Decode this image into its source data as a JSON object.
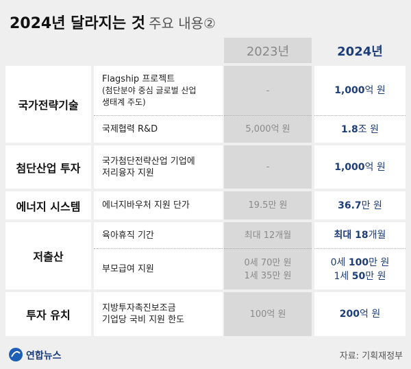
{
  "title": {
    "main": "2024년 달라지는 것",
    "sub": "주요 내용②"
  },
  "table": {
    "headers": [
      "2023년",
      "2024년"
    ],
    "groups": [
      {
        "category": "국가전략기술",
        "rows": [
          {
            "item": [
              "Flagship 프로젝트",
              "(첨단분야 중심 글로벌 산업",
              "생태계 주도)"
            ],
            "y2023": [
              "-"
            ],
            "y2024": [
              [
                {
                  "text": "1,000",
                  "bold": true
                },
                {
                  "text": "억 원",
                  "bold": false
                }
              ]
            ]
          },
          {
            "item": [
              "국제협력 R&D"
            ],
            "y2023": [
              "5,000억 원"
            ],
            "y2024": [
              [
                {
                  "text": "1.8",
                  "bold": true
                },
                {
                  "text": "조 원",
                  "bold": false
                }
              ]
            ]
          }
        ]
      },
      {
        "category": "첨단산업 투자",
        "rows": [
          {
            "item": [
              "국가첨단전략산업 기업에",
              "저리융자 지원"
            ],
            "y2023": [
              "-"
            ],
            "y2024": [
              [
                {
                  "text": "1,000",
                  "bold": true
                },
                {
                  "text": "억 원",
                  "bold": false
                }
              ]
            ]
          }
        ]
      },
      {
        "category": "에너지 시스템",
        "rows": [
          {
            "item": [
              "에너지바우처 지원 단가"
            ],
            "y2023": [
              "19.5만 원"
            ],
            "y2024": [
              [
                {
                  "text": "36.7",
                  "bold": true
                },
                {
                  "text": "만 원",
                  "bold": false
                }
              ]
            ]
          }
        ]
      },
      {
        "category": "저출산",
        "rows": [
          {
            "item": [
              "육아휴직 기간"
            ],
            "y2023": [
              "최대 12개월"
            ],
            "y2024": [
              [
                {
                  "text": "최대 18",
                  "bold": true
                },
                {
                  "text": "개월",
                  "bold": false
                }
              ]
            ]
          },
          {
            "item": [
              "부모급여 지원"
            ],
            "y2023": [
              "0세 70만 원",
              "1세 35만 원"
            ],
            "y2024": [
              [
                {
                  "text": "0세 ",
                  "bold": false
                },
                {
                  "text": "100",
                  "bold": true
                },
                {
                  "text": "만 원",
                  "bold": false
                }
              ],
              [
                {
                  "text": "1세 ",
                  "bold": false
                },
                {
                  "text": "50",
                  "bold": true
                },
                {
                  "text": "만 원",
                  "bold": false
                }
              ]
            ]
          }
        ]
      },
      {
        "category": "투자 유치",
        "rows": [
          {
            "item": [
              "지방투자촉진보조금",
              "기업당 국비 지원 한도"
            ],
            "y2023": [
              "100억 원"
            ],
            "y2024": [
              [
                {
                  "text": "200",
                  "bold": true
                },
                {
                  "text": "억 원",
                  "bold": false
                }
              ]
            ]
          }
        ]
      }
    ]
  },
  "footer": {
    "logo": "연합뉴스",
    "source": "자료: 기획재정부"
  }
}
